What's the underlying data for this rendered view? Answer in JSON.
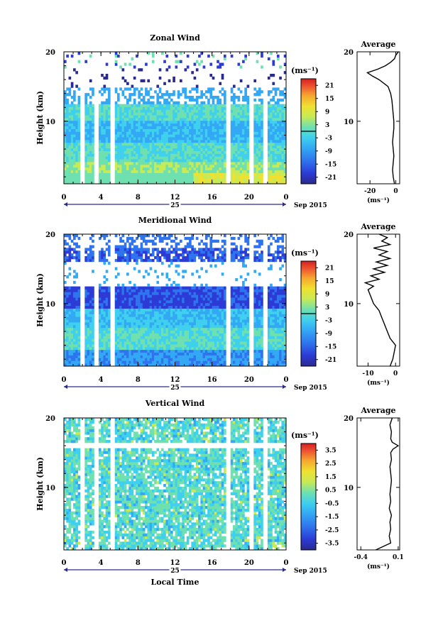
{
  "chart_data": [
    {
      "type": "heatmap",
      "title": "Zonal Wind",
      "ylabel": "Height (km)",
      "xlabel": "",
      "x_ticks": [
        "0",
        "4",
        "8",
        "12",
        "16",
        "20",
        "0"
      ],
      "y_ticks": [
        "20",
        "10"
      ],
      "xlim": [
        0,
        24
      ],
      "ylim": [
        1,
        20
      ],
      "date_label": "25",
      "date_suffix": "Sep 2015",
      "colorbar": {
        "unit_label": "(ms⁻¹)",
        "ticks": [
          "21",
          "15",
          "9",
          "3",
          "-3",
          "-9",
          "-15",
          "-21"
        ],
        "range": [
          -24,
          24
        ]
      },
      "profile": {
        "title": "Average",
        "xlabel": "(ms⁻¹)",
        "x_ticks": [
          "-20",
          "0"
        ],
        "x_tick_values": [
          -20,
          0
        ],
        "xlim": [
          -30,
          3
        ],
        "y_ticks": [
          "20",
          "10"
        ],
        "y": [
          1,
          2,
          3,
          4,
          5,
          6,
          7,
          8,
          9,
          10,
          11,
          12,
          13,
          14,
          15,
          16,
          16.5,
          17,
          17.5,
          18,
          18.5,
          19,
          19.5,
          20
        ],
        "x": [
          -1,
          -2,
          -2.5,
          -2,
          -1.5,
          -2,
          -2.5,
          -2,
          -1.5,
          -1.5,
          -2,
          -2.5,
          -3,
          -4,
          -6,
          -13,
          -18,
          -22,
          -14,
          -8,
          -4,
          -1,
          0,
          2
        ]
      }
    },
    {
      "type": "heatmap",
      "title": "Meridional Wind",
      "ylabel": "Height (km)",
      "xlabel": "",
      "x_ticks": [
        "0",
        "4",
        "8",
        "12",
        "16",
        "20",
        "0"
      ],
      "y_ticks": [
        "20",
        "10"
      ],
      "xlim": [
        0,
        24
      ],
      "ylim": [
        1,
        20
      ],
      "date_label": "25",
      "date_suffix": "Sep 2015",
      "colorbar": {
        "unit_label": "(ms⁻¹)",
        "ticks": [
          "21",
          "15",
          "9",
          "3",
          "-3",
          "-9",
          "-15",
          "-21"
        ],
        "range": [
          -24,
          24
        ]
      },
      "profile": {
        "title": "Average",
        "xlabel": "(ms⁻¹)",
        "x_ticks": [
          "-10",
          "0"
        ],
        "x_tick_values": [
          -10,
          0
        ],
        "xlim": [
          -14,
          1.5
        ],
        "y_ticks": [
          "20",
          "10"
        ],
        "y": [
          1,
          1.5,
          2,
          3,
          4,
          5,
          6,
          7,
          8,
          9,
          10,
          11,
          12,
          12.5,
          13,
          13.5,
          14,
          14.5,
          15,
          15.5,
          16,
          16.5,
          17,
          17.5,
          18,
          18.5,
          19,
          19.5,
          20
        ],
        "x": [
          -2,
          -1.5,
          -1,
          -0.5,
          0,
          -2,
          -3,
          -4,
          -5,
          -6,
          -8,
          -9,
          -10,
          -8,
          -11,
          -6,
          -9,
          -4,
          -8,
          -3,
          -7,
          -2,
          -6,
          -3,
          -8,
          -2,
          -5,
          -3,
          -6
        ]
      }
    },
    {
      "type": "heatmap",
      "title": "Vertical Wind",
      "ylabel": "Height (km)",
      "xlabel": "Local Time",
      "x_ticks": [
        "0",
        "4",
        "8",
        "12",
        "16",
        "20",
        "0"
      ],
      "y_ticks": [
        "20",
        "10"
      ],
      "xlim": [
        0,
        24
      ],
      "ylim": [
        1,
        20
      ],
      "date_label": "25",
      "date_suffix": "Sep 2015",
      "colorbar": {
        "unit_label": "(ms⁻¹)",
        "ticks": [
          "3.5",
          "2.5",
          "1.5",
          "0.5",
          "-0.5",
          "-1.5",
          "-2.5",
          "-3.5"
        ],
        "range": [
          -4,
          4
        ]
      },
      "profile": {
        "title": "Average",
        "xlabel": "(ms⁻¹)",
        "x_ticks": [
          "-0.4",
          "0.1"
        ],
        "x_tick_values": [
          -0.4,
          0.1
        ],
        "xlim": [
          -0.45,
          0.12
        ],
        "y_ticks": [
          "20",
          "10"
        ],
        "y": [
          1,
          2,
          3,
          4,
          5,
          6,
          7,
          8,
          9,
          10,
          11,
          12,
          13,
          14,
          15,
          15.5,
          16,
          16.5,
          17,
          18,
          19,
          20
        ],
        "x": [
          -0.2,
          0,
          -0.02,
          0,
          -0.01,
          0.01,
          -0.02,
          0,
          -0.01,
          0,
          0.01,
          0,
          -0.01,
          0.01,
          0,
          0.03,
          0.1,
          0.02,
          0,
          0.01,
          -0.01,
          0.02
        ]
      }
    }
  ]
}
